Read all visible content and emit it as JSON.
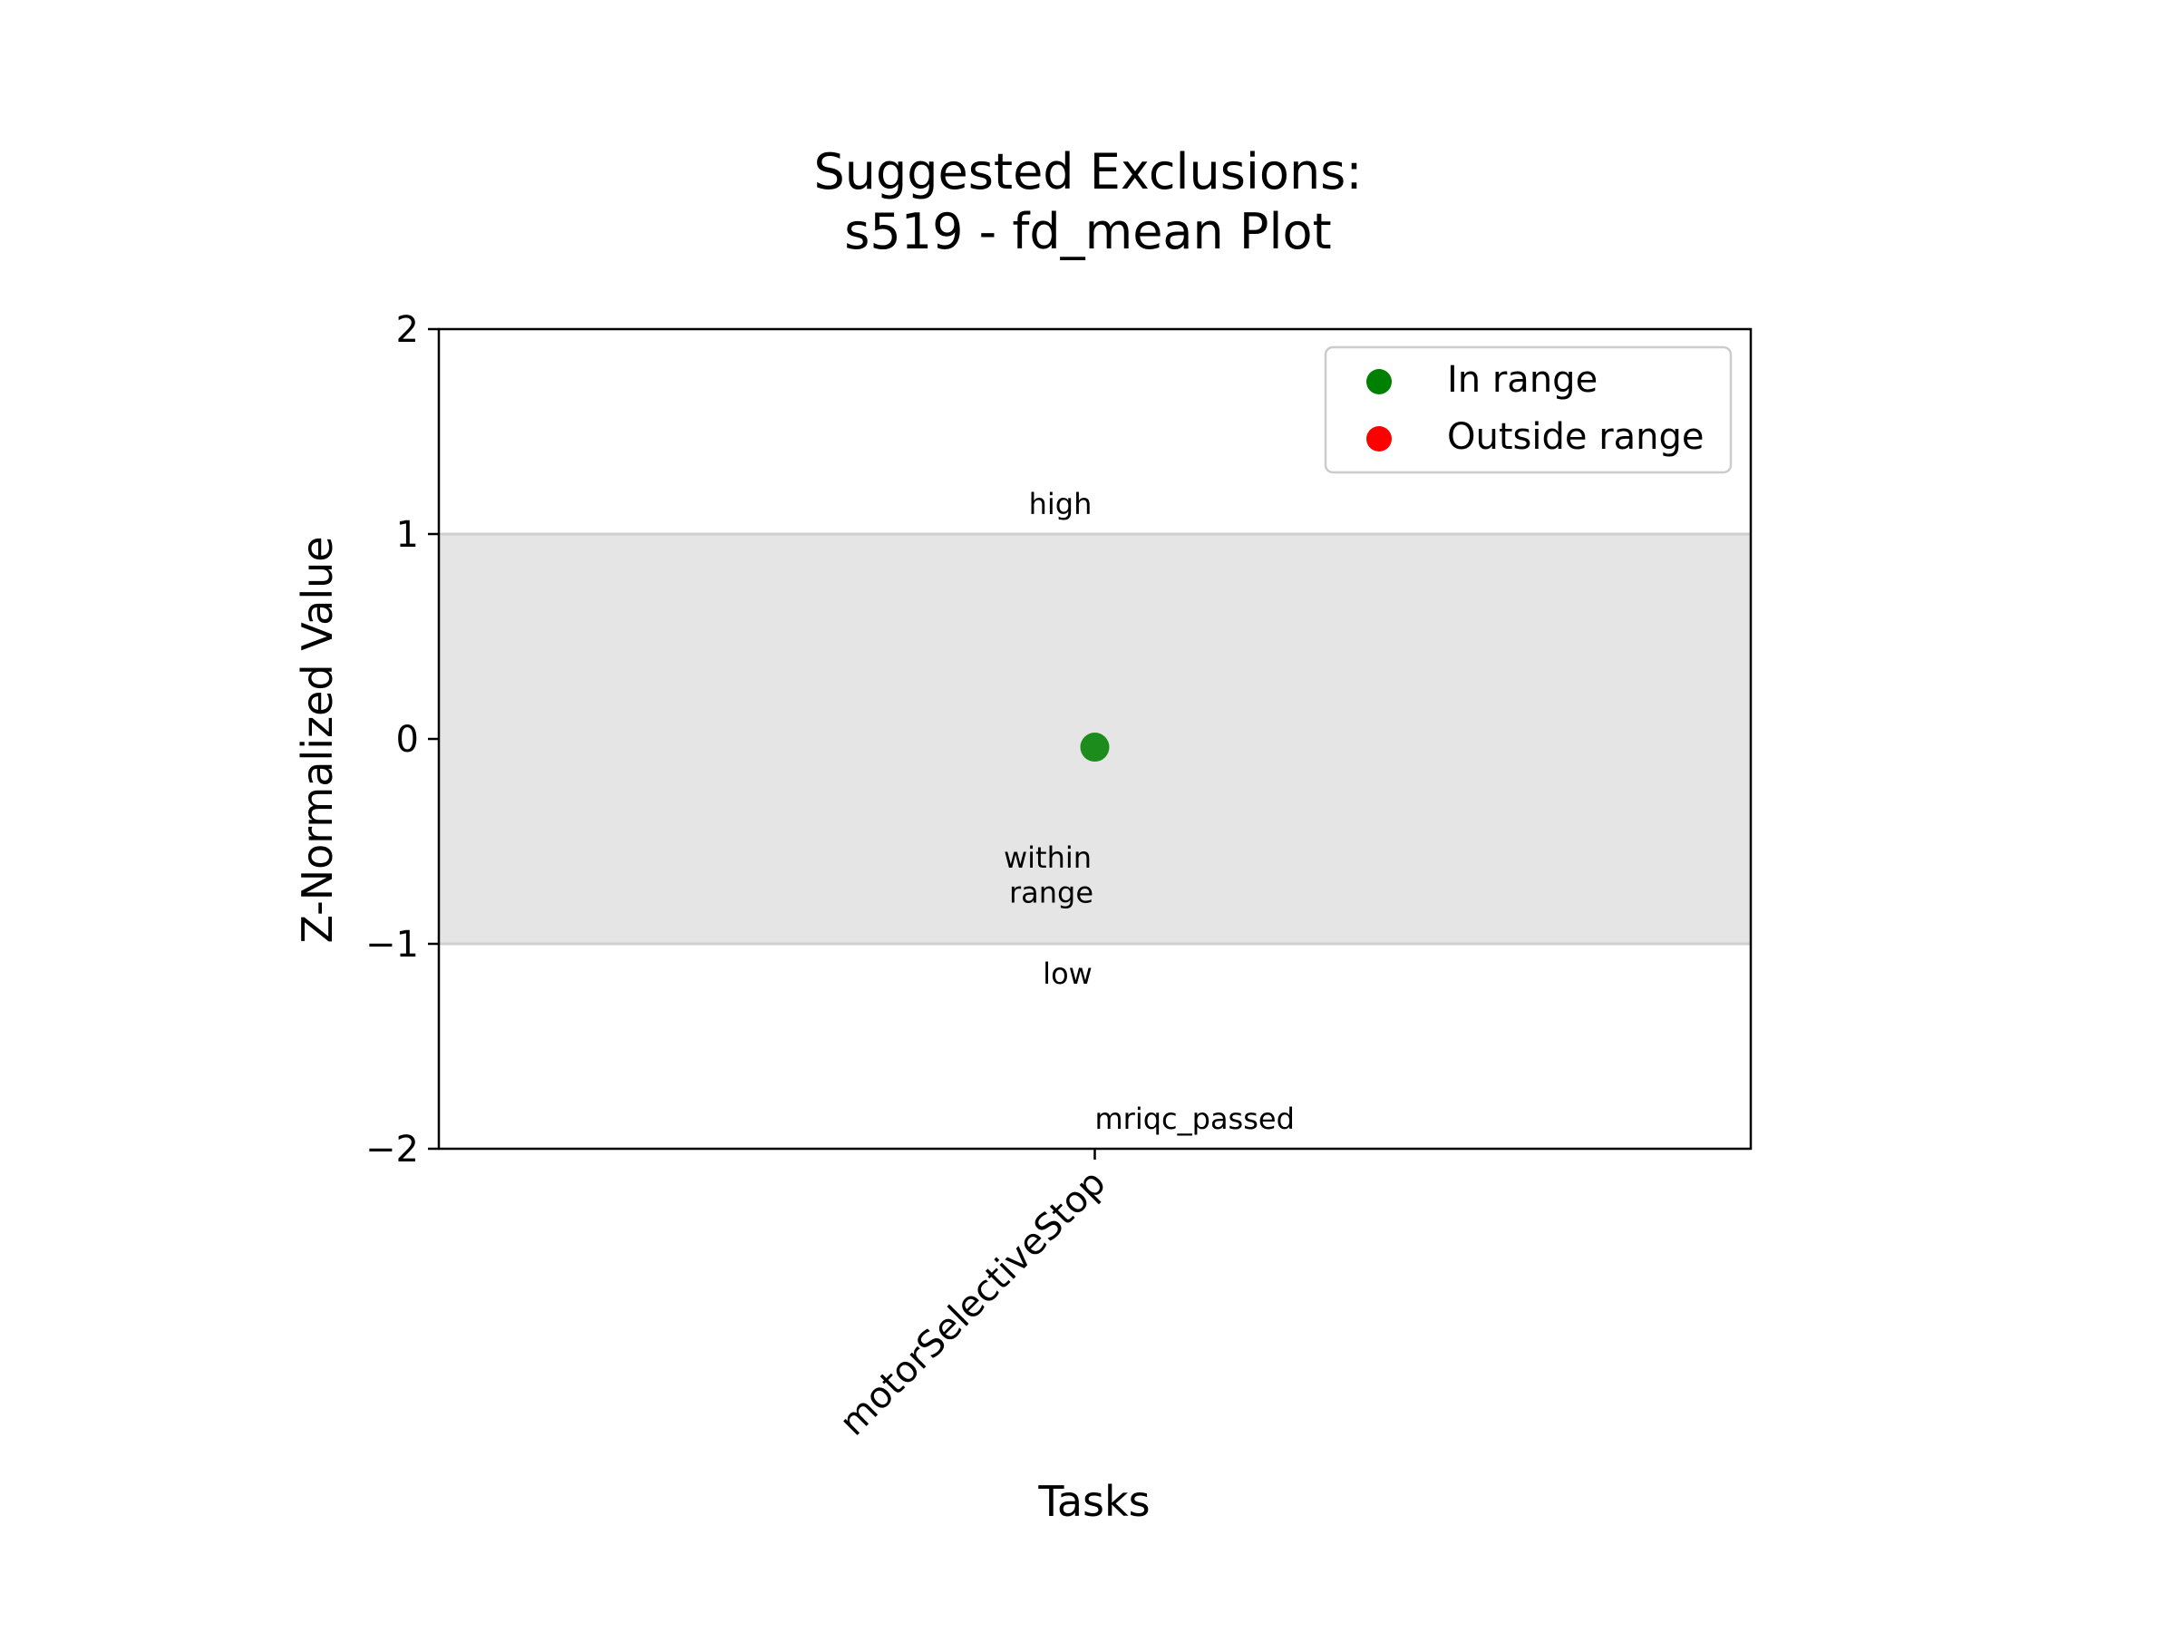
{
  "chart_data": {
    "type": "scatter",
    "title": "Suggested Exclusions:\ns519 - fd_mean Plot",
    "title_lines": [
      "Suggested Exclusions:",
      "s519 - fd_mean Plot"
    ],
    "xlabel": "Tasks",
    "ylabel": "Z-Normalized Value",
    "categories": [
      "motorSelectiveStop"
    ],
    "ylim": [
      -2,
      2
    ],
    "yticks": [
      -2,
      -1,
      0,
      1,
      2
    ],
    "ytick_labels": [
      "−2",
      "−1",
      "0",
      "1",
      "2"
    ],
    "grid": false,
    "legend_position": "top-right",
    "range_band": {
      "low": -1,
      "high": 1,
      "color": "#e5e5e5"
    },
    "series": [
      {
        "name": "In range",
        "color": "#008000",
        "points": [
          {
            "x": "motorSelectiveStop",
            "y": -0.04
          }
        ]
      },
      {
        "name": "Outside range",
        "color": "#ff0000",
        "points": []
      }
    ],
    "annotations": [
      {
        "id": "high",
        "text": "high"
      },
      {
        "id": "within",
        "text": "within\nrange",
        "lines": [
          "within",
          "range"
        ]
      },
      {
        "id": "low",
        "text": "low"
      },
      {
        "id": "mriqc",
        "text": "mriqc_passed"
      }
    ]
  }
}
